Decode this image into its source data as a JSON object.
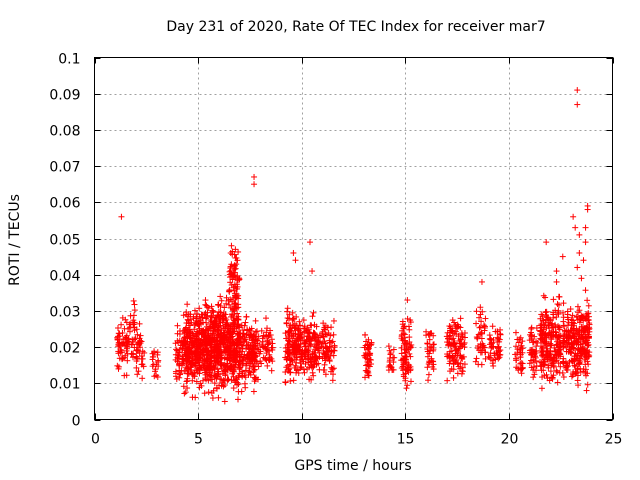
{
  "chart_data": {
    "type": "scatter",
    "title": "Day 231 of 2020, Rate Of TEC Index for receiver mar7",
    "xlabel": "GPS time / hours",
    "ylabel": "ROTI / TECUs",
    "xlim": [
      0,
      25
    ],
    "ylim": [
      0,
      0.1
    ],
    "x_ticks": [
      "0",
      "5",
      "10",
      "15",
      "20",
      "25"
    ],
    "y_ticks": [
      "0",
      "0.01",
      "0.02",
      "0.03",
      "0.04",
      "0.05",
      "0.06",
      "0.07",
      "0.08",
      "0.09",
      "0.1"
    ],
    "grid": true,
    "marker": "plus",
    "color": "#ff0000",
    "clusters": [
      {
        "x": [
          1.1,
          1.6
        ],
        "y_min": 0.011,
        "y_max": 0.029,
        "density": 4
      },
      {
        "x": [
          1.6,
          2.0
        ],
        "y_min": 0.013,
        "y_max": 0.034,
        "density": 3
      },
      {
        "x": [
          2.0,
          2.4
        ],
        "y_min": 0.009,
        "y_max": 0.027,
        "density": 3
      },
      {
        "x": [
          2.8,
          3.1
        ],
        "y_min": 0.009,
        "y_max": 0.022,
        "density": 2
      },
      {
        "x": [
          3.9,
          4.3
        ],
        "y_min": 0.008,
        "y_max": 0.028,
        "density": 4
      },
      {
        "x": [
          4.3,
          5.2
        ],
        "y_min": 0.007,
        "y_max": 0.033,
        "density": 12
      },
      {
        "x": [
          5.2,
          6.2
        ],
        "y_min": 0.006,
        "y_max": 0.034,
        "density": 14
      },
      {
        "x": [
          6.2,
          7.0
        ],
        "y_min": 0.005,
        "y_max": 0.036,
        "density": 14
      },
      {
        "x": [
          6.5,
          7.0
        ],
        "y_min": 0.03,
        "y_max": 0.048,
        "density": 4
      },
      {
        "x": [
          7.0,
          7.8
        ],
        "y_min": 0.008,
        "y_max": 0.03,
        "density": 8
      },
      {
        "x": [
          7.8,
          8.6
        ],
        "y_min": 0.011,
        "y_max": 0.028,
        "density": 3
      },
      {
        "x": [
          9.2,
          10.0
        ],
        "y_min": 0.009,
        "y_max": 0.032,
        "density": 8
      },
      {
        "x": [
          10.0,
          10.8
        ],
        "y_min": 0.01,
        "y_max": 0.03,
        "density": 6
      },
      {
        "x": [
          10.8,
          11.6
        ],
        "y_min": 0.01,
        "y_max": 0.028,
        "density": 4
      },
      {
        "x": [
          13.0,
          13.4
        ],
        "y_min": 0.008,
        "y_max": 0.027,
        "density": 4
      },
      {
        "x": [
          14.2,
          14.5
        ],
        "y_min": 0.01,
        "y_max": 0.022,
        "density": 2
      },
      {
        "x": [
          14.8,
          15.3
        ],
        "y_min": 0.007,
        "y_max": 0.032,
        "density": 6
      },
      {
        "x": [
          16.0,
          16.4
        ],
        "y_min": 0.011,
        "y_max": 0.028,
        "density": 3
      },
      {
        "x": [
          17.0,
          17.9
        ],
        "y_min": 0.01,
        "y_max": 0.03,
        "density": 5
      },
      {
        "x": [
          18.4,
          18.9
        ],
        "y_min": 0.012,
        "y_max": 0.033,
        "density": 3
      },
      {
        "x": [
          19.0,
          19.6
        ],
        "y_min": 0.014,
        "y_max": 0.027,
        "density": 3
      },
      {
        "x": [
          20.3,
          20.7
        ],
        "y_min": 0.01,
        "y_max": 0.025,
        "density": 3
      },
      {
        "x": [
          21.0,
          21.4
        ],
        "y_min": 0.01,
        "y_max": 0.028,
        "density": 4
      },
      {
        "x": [
          21.5,
          22.5
        ],
        "y_min": 0.009,
        "y_max": 0.035,
        "density": 9
      },
      {
        "x": [
          22.6,
          23.3
        ],
        "y_min": 0.009,
        "y_max": 0.033,
        "density": 7
      },
      {
        "x": [
          23.3,
          23.9
        ],
        "y_min": 0.007,
        "y_max": 0.036,
        "density": 9
      }
    ],
    "outliers": [
      {
        "x": 1.3,
        "y": 0.056
      },
      {
        "x": 7.7,
        "y": 0.067
      },
      {
        "x": 7.7,
        "y": 0.065
      },
      {
        "x": 9.6,
        "y": 0.046
      },
      {
        "x": 9.7,
        "y": 0.044
      },
      {
        "x": 10.4,
        "y": 0.049
      },
      {
        "x": 10.5,
        "y": 0.041
      },
      {
        "x": 6.8,
        "y": 0.047
      },
      {
        "x": 15.1,
        "y": 0.033
      },
      {
        "x": 18.7,
        "y": 0.038
      },
      {
        "x": 21.8,
        "y": 0.049
      },
      {
        "x": 22.3,
        "y": 0.038
      },
      {
        "x": 22.6,
        "y": 0.045
      },
      {
        "x": 22.3,
        "y": 0.041
      },
      {
        "x": 23.1,
        "y": 0.056
      },
      {
        "x": 23.2,
        "y": 0.053
      },
      {
        "x": 23.4,
        "y": 0.051
      },
      {
        "x": 23.4,
        "y": 0.046
      },
      {
        "x": 23.3,
        "y": 0.042
      },
      {
        "x": 23.5,
        "y": 0.039
      },
      {
        "x": 23.6,
        "y": 0.044
      },
      {
        "x": 23.7,
        "y": 0.053
      },
      {
        "x": 23.8,
        "y": 0.058
      },
      {
        "x": 23.8,
        "y": 0.059
      },
      {
        "x": 23.7,
        "y": 0.049
      },
      {
        "x": 23.3,
        "y": 0.091
      },
      {
        "x": 23.3,
        "y": 0.087
      }
    ]
  }
}
